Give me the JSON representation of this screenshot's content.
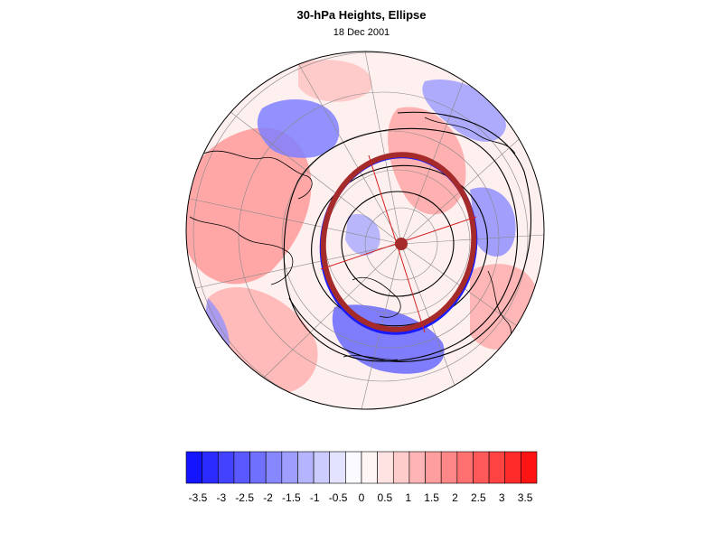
{
  "header": {
    "title": "30-hPa Heights, Ellipse",
    "date": "18 Dec 2001"
  },
  "map": {
    "projection": "orthographic-polar-north",
    "field": "30-hPa height anomaly",
    "overlay": "fitted ellipse of polar vortex",
    "colors": {
      "ellipse": "#a52a2a",
      "axes": "#d21e1e",
      "contours": "#000000",
      "grid": "#888888"
    }
  },
  "colorbar": {
    "levels": [
      "-3.5",
      "-3",
      "-2.5",
      "-2",
      "-1.5",
      "-1",
      "-0.5",
      "0",
      "0.5",
      "1",
      "1.5",
      "2",
      "2.5",
      "3",
      "3.5"
    ],
    "colors": [
      "#1414ff",
      "#2b2bff",
      "#4242ff",
      "#5959ff",
      "#7070ff",
      "#8787ff",
      "#9e9eff",
      "#b5b5ff",
      "#ccccff",
      "#e3e3ff",
      "#fafaff",
      "#fff5f5",
      "#ffe3e3",
      "#ffcccc",
      "#ffb5b5",
      "#ff9e9e",
      "#ff8787",
      "#ff7070",
      "#ff5959",
      "#ff4242",
      "#ff2b2b",
      "#ff1414"
    ]
  }
}
